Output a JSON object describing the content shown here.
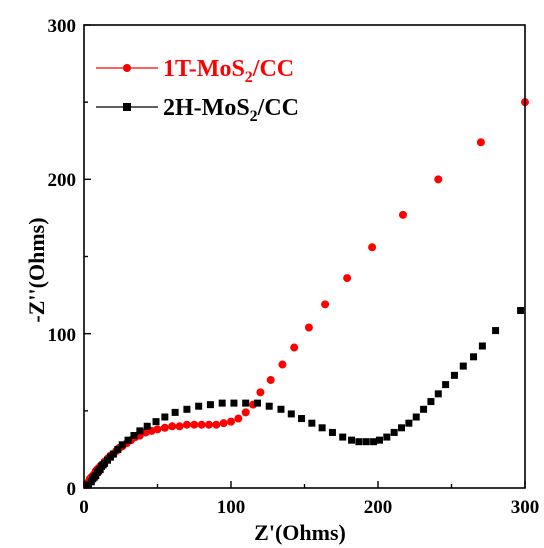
{
  "chart_data": {
    "type": "scatter",
    "xlabel": "Z'(Ohms)",
    "ylabel": "-Z''(Ohms)",
    "xlim": [
      0,
      300
    ],
    "ylim": [
      0,
      300
    ],
    "x_ticks": [
      0,
      100,
      200,
      300
    ],
    "y_ticks": [
      0,
      100,
      200,
      300
    ],
    "grid": false,
    "legend_position": "top-left",
    "series": [
      {
        "name": "1T-MoS2/CC",
        "label_main": "1T-MoS",
        "label_sub": "2",
        "label_tail": "/CC",
        "color": "#ff0000",
        "marker": "circle",
        "points": [
          [
            2,
            2
          ],
          [
            3,
            4
          ],
          [
            4,
            6
          ],
          [
            5,
            7
          ],
          [
            6,
            8
          ],
          [
            7,
            9
          ],
          [
            8,
            11
          ],
          [
            9,
            12
          ],
          [
            10,
            13
          ],
          [
            11,
            14
          ],
          [
            12,
            15
          ],
          [
            14,
            17
          ],
          [
            16,
            19
          ],
          [
            18,
            21
          ],
          [
            20,
            22
          ],
          [
            22,
            24
          ],
          [
            24,
            26
          ],
          [
            26,
            27
          ],
          [
            29,
            29
          ],
          [
            32,
            31
          ],
          [
            35,
            33
          ],
          [
            38,
            34
          ],
          [
            42,
            36
          ],
          [
            46,
            37
          ],
          [
            50,
            38
          ],
          [
            55,
            39
          ],
          [
            60,
            40
          ],
          [
            65,
            40
          ],
          [
            70,
            41
          ],
          [
            75,
            41
          ],
          [
            80,
            41
          ],
          [
            85,
            41
          ],
          [
            90,
            41
          ],
          [
            95,
            42
          ],
          [
            100,
            43
          ],
          [
            105,
            45
          ],
          [
            110,
            49
          ],
          [
            115,
            54
          ],
          [
            120,
            62
          ],
          [
            127,
            70
          ],
          [
            135,
            80
          ],
          [
            143,
            91
          ],
          [
            153,
            104
          ],
          [
            164,
            119
          ],
          [
            179,
            136
          ],
          [
            196,
            156
          ],
          [
            217,
            177
          ],
          [
            241,
            200
          ],
          [
            270,
            224
          ],
          [
            300,
            250
          ]
        ]
      },
      {
        "name": "2H-MoS2/CC",
        "label_main": "2H-MoS",
        "label_sub": "2",
        "label_tail": "/CC",
        "color": "#000000",
        "marker": "square",
        "points": [
          [
            3,
            2
          ],
          [
            5,
            4
          ],
          [
            6,
            6
          ],
          [
            7,
            7
          ],
          [
            8,
            8
          ],
          [
            9,
            10
          ],
          [
            10,
            11
          ],
          [
            11,
            12
          ],
          [
            12,
            14
          ],
          [
            13,
            15
          ],
          [
            14,
            16
          ],
          [
            16,
            18
          ],
          [
            18,
            20
          ],
          [
            20,
            22
          ],
          [
            23,
            25
          ],
          [
            26,
            28
          ],
          [
            30,
            31
          ],
          [
            34,
            34
          ],
          [
            38,
            37
          ],
          [
            43,
            40
          ],
          [
            49,
            43
          ],
          [
            55,
            46
          ],
          [
            62,
            49
          ],
          [
            70,
            51
          ],
          [
            78,
            53
          ],
          [
            86,
            54
          ],
          [
            94,
            55
          ],
          [
            102,
            55
          ],
          [
            110,
            55
          ],
          [
            118,
            55
          ],
          [
            126,
            53
          ],
          [
            134,
            51
          ],
          [
            141,
            48
          ],
          [
            148,
            45
          ],
          [
            155,
            42
          ],
          [
            162,
            39
          ],
          [
            169,
            36
          ],
          [
            176,
            33
          ],
          [
            182,
            31
          ],
          [
            187,
            30
          ],
          [
            192,
            30
          ],
          [
            197,
            30
          ],
          [
            201,
            31
          ],
          [
            206,
            33
          ],
          [
            211,
            36
          ],
          [
            216,
            39
          ],
          [
            221,
            42
          ],
          [
            226,
            46
          ],
          [
            231,
            51
          ],
          [
            236,
            56
          ],
          [
            241,
            61
          ],
          [
            246,
            67
          ],
          [
            252,
            73
          ],
          [
            258,
            79
          ],
          [
            265,
            85
          ],
          [
            271,
            92
          ],
          [
            280,
            102
          ],
          [
            297,
            115
          ]
        ]
      }
    ]
  }
}
